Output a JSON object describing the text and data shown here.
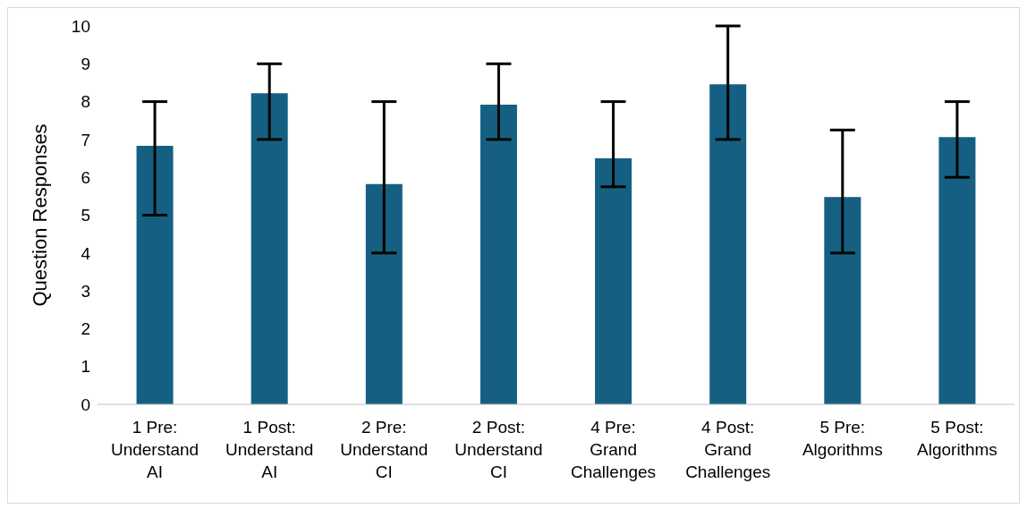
{
  "chart_data": {
    "type": "bar",
    "ylabel": "Question Responses",
    "categories": [
      "1 Pre: Understand AI",
      "1 Post: Understand AI",
      "2 Pre: Understand CI",
      "2 Post: Understand CI",
      "4 Pre: Grand Challenges",
      "4 Post: Grand Challenges",
      "5 Pre: Algorithms",
      "5 Post: Algorithms"
    ],
    "values": [
      6.83,
      8.22,
      5.82,
      7.92,
      6.5,
      8.46,
      5.48,
      7.06
    ],
    "errors": [
      [
        5,
        8
      ],
      [
        7,
        9
      ],
      [
        4,
        8
      ],
      [
        7,
        9
      ],
      [
        5.75,
        8
      ],
      [
        7,
        10
      ],
      [
        4,
        7.25
      ],
      [
        6,
        8
      ]
    ],
    "color": "#156082",
    "ylim": [
      0,
      10
    ],
    "yticks": [
      0,
      1,
      2,
      3,
      4,
      5,
      6,
      7,
      8,
      9,
      10
    ],
    "grid": false,
    "legend": false
  }
}
